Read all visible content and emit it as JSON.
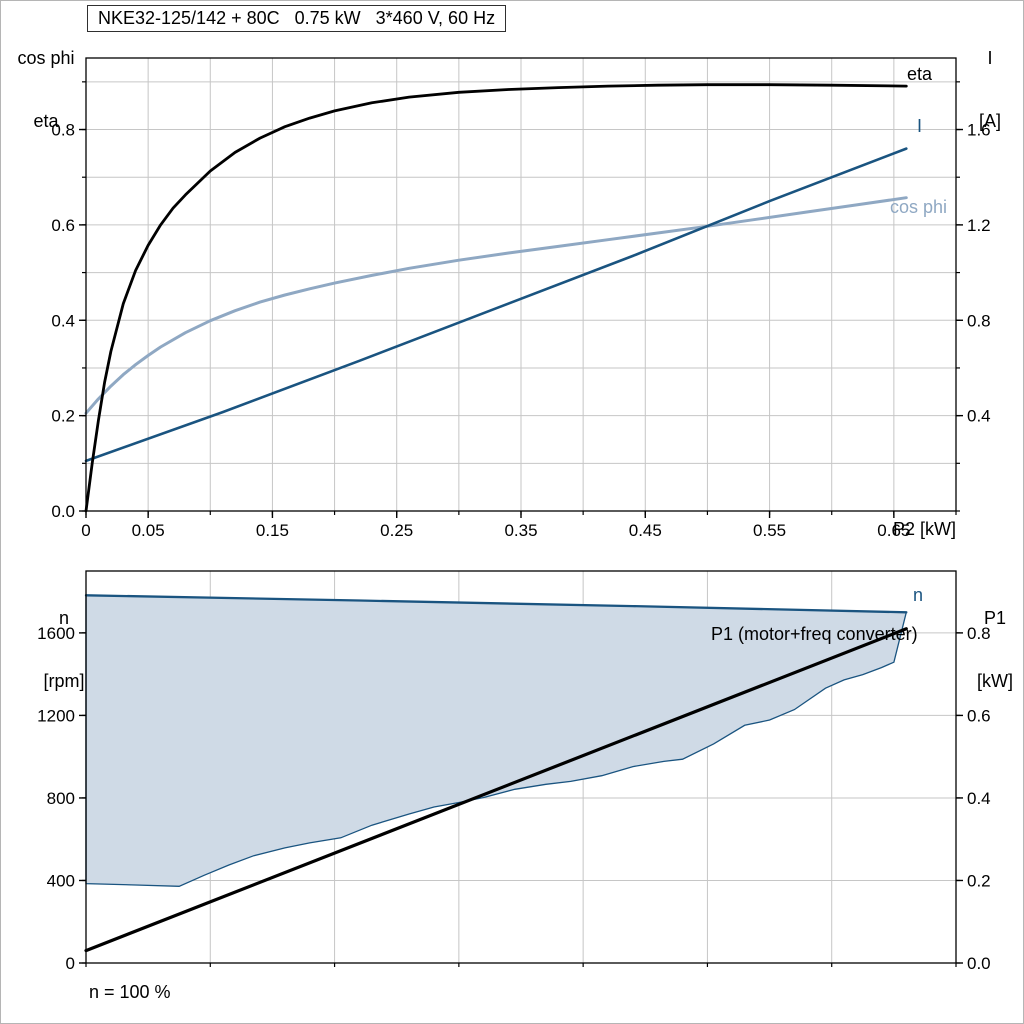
{
  "chart_data": [
    {
      "type": "line",
      "name": "motor-performance-chart",
      "title": "NKE32-125/142 + 80C   0.75 kW   3*460 V, 60 Hz",
      "x_label": "P2 [kW]",
      "y_left_label_lines": [
        "cos phi",
        "eta"
      ],
      "y_right_label_lines": [
        "I",
        "[A]"
      ],
      "x_range": [
        0,
        0.7
      ],
      "y_left_range": [
        0,
        0.95
      ],
      "y_right_range": [
        0,
        1.9
      ],
      "x_grid_step": 0.05,
      "y_grid_step": 0.1,
      "x_tick_values": [
        0,
        0.05,
        0.15,
        0.25,
        0.35,
        0.45,
        0.55,
        0.65
      ],
      "x_tick_labels": [
        "0",
        "0.05",
        "0.15",
        "0.25",
        "0.35",
        "0.45",
        "0.55",
        "0.65"
      ],
      "y_left_tick_values": [
        0,
        0.2,
        0.4,
        0.6,
        0.8
      ],
      "y_left_tick_labels": [
        "0.0",
        "0.2",
        "0.4",
        "0.6",
        "0.8"
      ],
      "y_right_tick_values": [
        0.4,
        0.8,
        1.2,
        1.6
      ],
      "y_right_tick_labels": [
        "0.4",
        "0.8",
        "1.2",
        "1.6"
      ],
      "grid_color": "#c6c6c6",
      "axis_color": "#000000",
      "series": [
        {
          "name": "cos phi",
          "axis": "left",
          "color": "#8fa8c3",
          "width": 3,
          "x": [
            0,
            0.01,
            0.02,
            0.03,
            0.04,
            0.05,
            0.06,
            0.08,
            0.1,
            0.12,
            0.14,
            0.16,
            0.18,
            0.2,
            0.23,
            0.26,
            0.3,
            0.34,
            0.38,
            0.42,
            0.46,
            0.5,
            0.54,
            0.58,
            0.62,
            0.66
          ],
          "y": [
            0.205,
            0.235,
            0.262,
            0.286,
            0.307,
            0.326,
            0.344,
            0.374,
            0.399,
            0.42,
            0.438,
            0.453,
            0.466,
            0.478,
            0.494,
            0.509,
            0.526,
            0.541,
            0.555,
            0.569,
            0.583,
            0.597,
            0.612,
            0.627,
            0.642,
            0.657
          ]
        },
        {
          "name": "I",
          "axis": "right",
          "color": "#1a5480",
          "width": 2.6,
          "x": [
            0,
            0.11,
            0.22,
            0.33,
            0.44,
            0.55,
            0.66
          ],
          "y": [
            0.21,
            0.415,
            0.63,
            0.85,
            1.07,
            1.3,
            1.52
          ]
        },
        {
          "name": "eta",
          "axis": "left",
          "color": "#000000",
          "width": 2.8,
          "x": [
            0,
            0.005,
            0.01,
            0.015,
            0.02,
            0.03,
            0.04,
            0.05,
            0.06,
            0.07,
            0.08,
            0.1,
            0.12,
            0.14,
            0.16,
            0.18,
            0.2,
            0.23,
            0.26,
            0.3,
            0.34,
            0.38,
            0.42,
            0.46,
            0.5,
            0.55,
            0.6,
            0.66
          ],
          "y": [
            0,
            0.1,
            0.19,
            0.27,
            0.335,
            0.435,
            0.505,
            0.557,
            0.6,
            0.635,
            0.663,
            0.713,
            0.752,
            0.782,
            0.806,
            0.824,
            0.839,
            0.856,
            0.868,
            0.878,
            0.884,
            0.888,
            0.891,
            0.893,
            0.894,
            0.894,
            0.893,
            0.891
          ]
        }
      ]
    },
    {
      "type": "line",
      "name": "speed-power-chart",
      "x_label": "",
      "footnote": "n = 100 %",
      "y_left_label_lines": [
        "n",
        "[rpm]"
      ],
      "y_right_label_lines": [
        "P1",
        "[kW]"
      ],
      "x_range": [
        0,
        0.7
      ],
      "y_left_range": [
        0,
        1900
      ],
      "y_right_range": [
        0,
        0.95
      ],
      "x_grid_step": 0.1,
      "y_grid_step": 400,
      "x_tick_values": [],
      "x_tick_labels": [],
      "y_left_tick_values": [
        0,
        400,
        800,
        1200,
        1600
      ],
      "y_left_tick_labels": [
        "0",
        "400",
        "800",
        "1200",
        "1600"
      ],
      "y_right_tick_values": [
        0,
        0.2,
        0.4,
        0.6,
        0.8
      ],
      "y_right_tick_labels": [
        "0.0",
        "0.2",
        "0.4",
        "0.6",
        "0.8"
      ],
      "grid_color": "#c6c6c6",
      "axis_color": "#000000",
      "series": [
        {
          "name": "n-operating-region",
          "axis": "left",
          "type": "area",
          "color": "#1a5480",
          "width": 1.3,
          "fill": "#cfdae6",
          "x": [
            0,
            0.22,
            0.44,
            0.66,
            0.65,
            0.64,
            0.625,
            0.61,
            0.595,
            0.57,
            0.55,
            0.53,
            0.505,
            0.48,
            0.465,
            0.44,
            0.415,
            0.39,
            0.37,
            0.345,
            0.32,
            0.3,
            0.28,
            0.26,
            0.23,
            0.205,
            0.18,
            0.16,
            0.135,
            0.115,
            0.095,
            0.075,
            0.04,
            0
          ],
          "y": [
            1782,
            1757,
            1730,
            1700,
            1458,
            1432,
            1398,
            1372,
            1332,
            1228,
            1178,
            1152,
            1062,
            988,
            977,
            952,
            908,
            880,
            866,
            842,
            802,
            778,
            756,
            722,
            668,
            607,
            582,
            558,
            520,
            475,
            425,
            372,
            378,
            385
          ]
        },
        {
          "name": "n",
          "axis": "left",
          "color": "#1a5480",
          "width": 2.3,
          "x": [
            0,
            0.22,
            0.44,
            0.66
          ],
          "y": [
            1782,
            1757,
            1730,
            1700
          ]
        },
        {
          "name": "P1",
          "label": "P1 (motor+freq converter)",
          "axis": "right",
          "color": "#000000",
          "width": 3.2,
          "x": [
            0,
            0.66
          ],
          "y": [
            0.03,
            0.81
          ]
        }
      ]
    }
  ]
}
